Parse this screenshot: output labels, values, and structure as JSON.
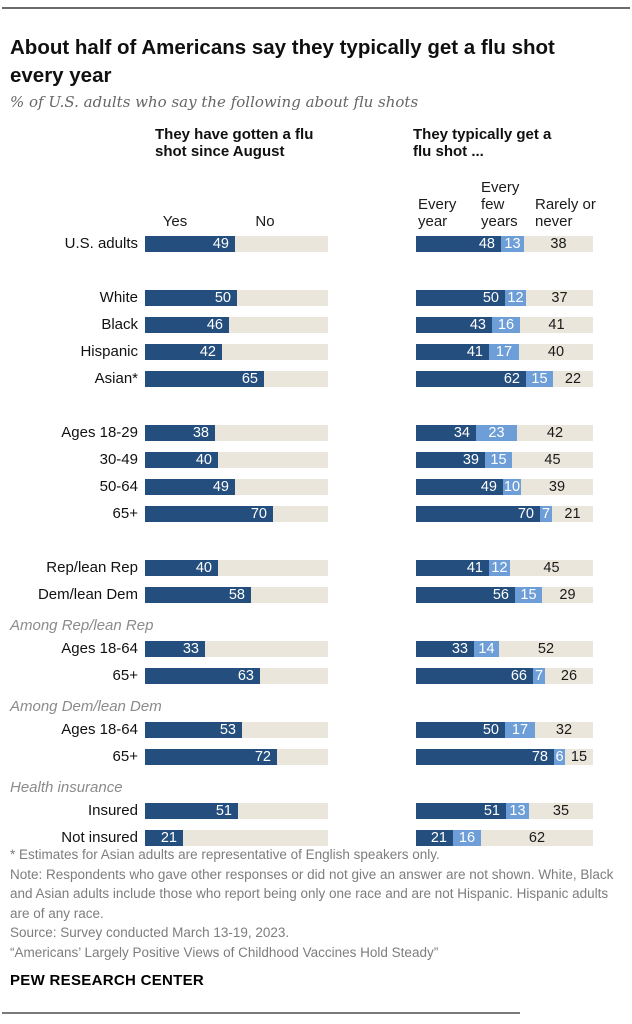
{
  "title": "About half of Americans say they typically get a flu shot every year",
  "subtitle": "% of U.S. adults who say the following about flu shots",
  "colors": {
    "dark_blue": "#234E7D",
    "light_blue": "#6D9ED8",
    "track_beige": "#EAE6DC"
  },
  "chart_data": {
    "type": "bar",
    "left_panel": {
      "header": "They have gotten a flu shot since August",
      "columns": [
        "Yes",
        "No"
      ],
      "axis_max": 100
    },
    "right_panel": {
      "header": "They typically get a flu shot ...",
      "columns": [
        "Every year",
        "Every few years",
        "Rarely or never"
      ],
      "axis_max": 100
    },
    "rows": [
      {
        "type": "row",
        "label": "U.S. adults",
        "yes": 49,
        "every_year": 48,
        "every_few": 13,
        "rarely": 38
      },
      {
        "type": "spacer"
      },
      {
        "type": "row",
        "label": "White",
        "yes": 50,
        "every_year": 50,
        "every_few": 12,
        "rarely": 37
      },
      {
        "type": "row",
        "label": "Black",
        "yes": 46,
        "every_year": 43,
        "every_few": 16,
        "rarely": 41
      },
      {
        "type": "row",
        "label": "Hispanic",
        "yes": 42,
        "every_year": 41,
        "every_few": 17,
        "rarely": 40
      },
      {
        "type": "row",
        "label": "Asian*",
        "yes": 65,
        "every_year": 62,
        "every_few": 15,
        "rarely": 22
      },
      {
        "type": "spacer"
      },
      {
        "type": "row",
        "label": "Ages 18-29",
        "yes": 38,
        "every_year": 34,
        "every_few": 23,
        "rarely": 42
      },
      {
        "type": "row",
        "label": "30-49",
        "yes": 40,
        "every_year": 39,
        "every_few": 15,
        "rarely": 45
      },
      {
        "type": "row",
        "label": "50-64",
        "yes": 49,
        "every_year": 49,
        "every_few": 10,
        "rarely": 39
      },
      {
        "type": "row",
        "label": "65+",
        "yes": 70,
        "every_year": 70,
        "every_few": 7,
        "rarely": 21
      },
      {
        "type": "spacer"
      },
      {
        "type": "row",
        "label": "Rep/lean Rep",
        "yes": 40,
        "every_year": 41,
        "every_few": 12,
        "rarely": 45
      },
      {
        "type": "row",
        "label": "Dem/lean Dem",
        "yes": 58,
        "every_year": 56,
        "every_few": 15,
        "rarely": 29
      },
      {
        "type": "section",
        "label": "Among Rep/lean Rep"
      },
      {
        "type": "row",
        "label": "Ages 18-64",
        "yes": 33,
        "every_year": 33,
        "every_few": 14,
        "rarely": 52
      },
      {
        "type": "row",
        "label": "65+",
        "yes": 63,
        "every_year": 66,
        "every_few": 7,
        "rarely": 26
      },
      {
        "type": "section",
        "label": "Among Dem/lean Dem"
      },
      {
        "type": "row",
        "label": "Ages 18-64",
        "yes": 53,
        "every_year": 50,
        "every_few": 17,
        "rarely": 32
      },
      {
        "type": "row",
        "label": "65+",
        "yes": 72,
        "every_year": 78,
        "every_few": 6,
        "rarely": 15
      },
      {
        "type": "section",
        "label": "Health insurance"
      },
      {
        "type": "row",
        "label": "Insured",
        "yes": 51,
        "every_year": 51,
        "every_few": 13,
        "rarely": 35
      },
      {
        "type": "row",
        "label": "Not insured",
        "yes": 21,
        "every_year": 21,
        "every_few": 16,
        "rarely": 62
      }
    ]
  },
  "footnotes": [
    "* Estimates for Asian adults are representative of English speakers only.",
    "Note: Respondents who gave other responses or did not give an answer are not shown. White, Black and Asian adults include those who report being only one race and are not Hispanic. Hispanic adults are of any race.",
    "Source: Survey conducted March 13-19, 2023.",
    "“Americans’ Largely Positive Views of Childhood Vaccines Hold Steady”"
  ],
  "brand": "PEW RESEARCH CENTER"
}
